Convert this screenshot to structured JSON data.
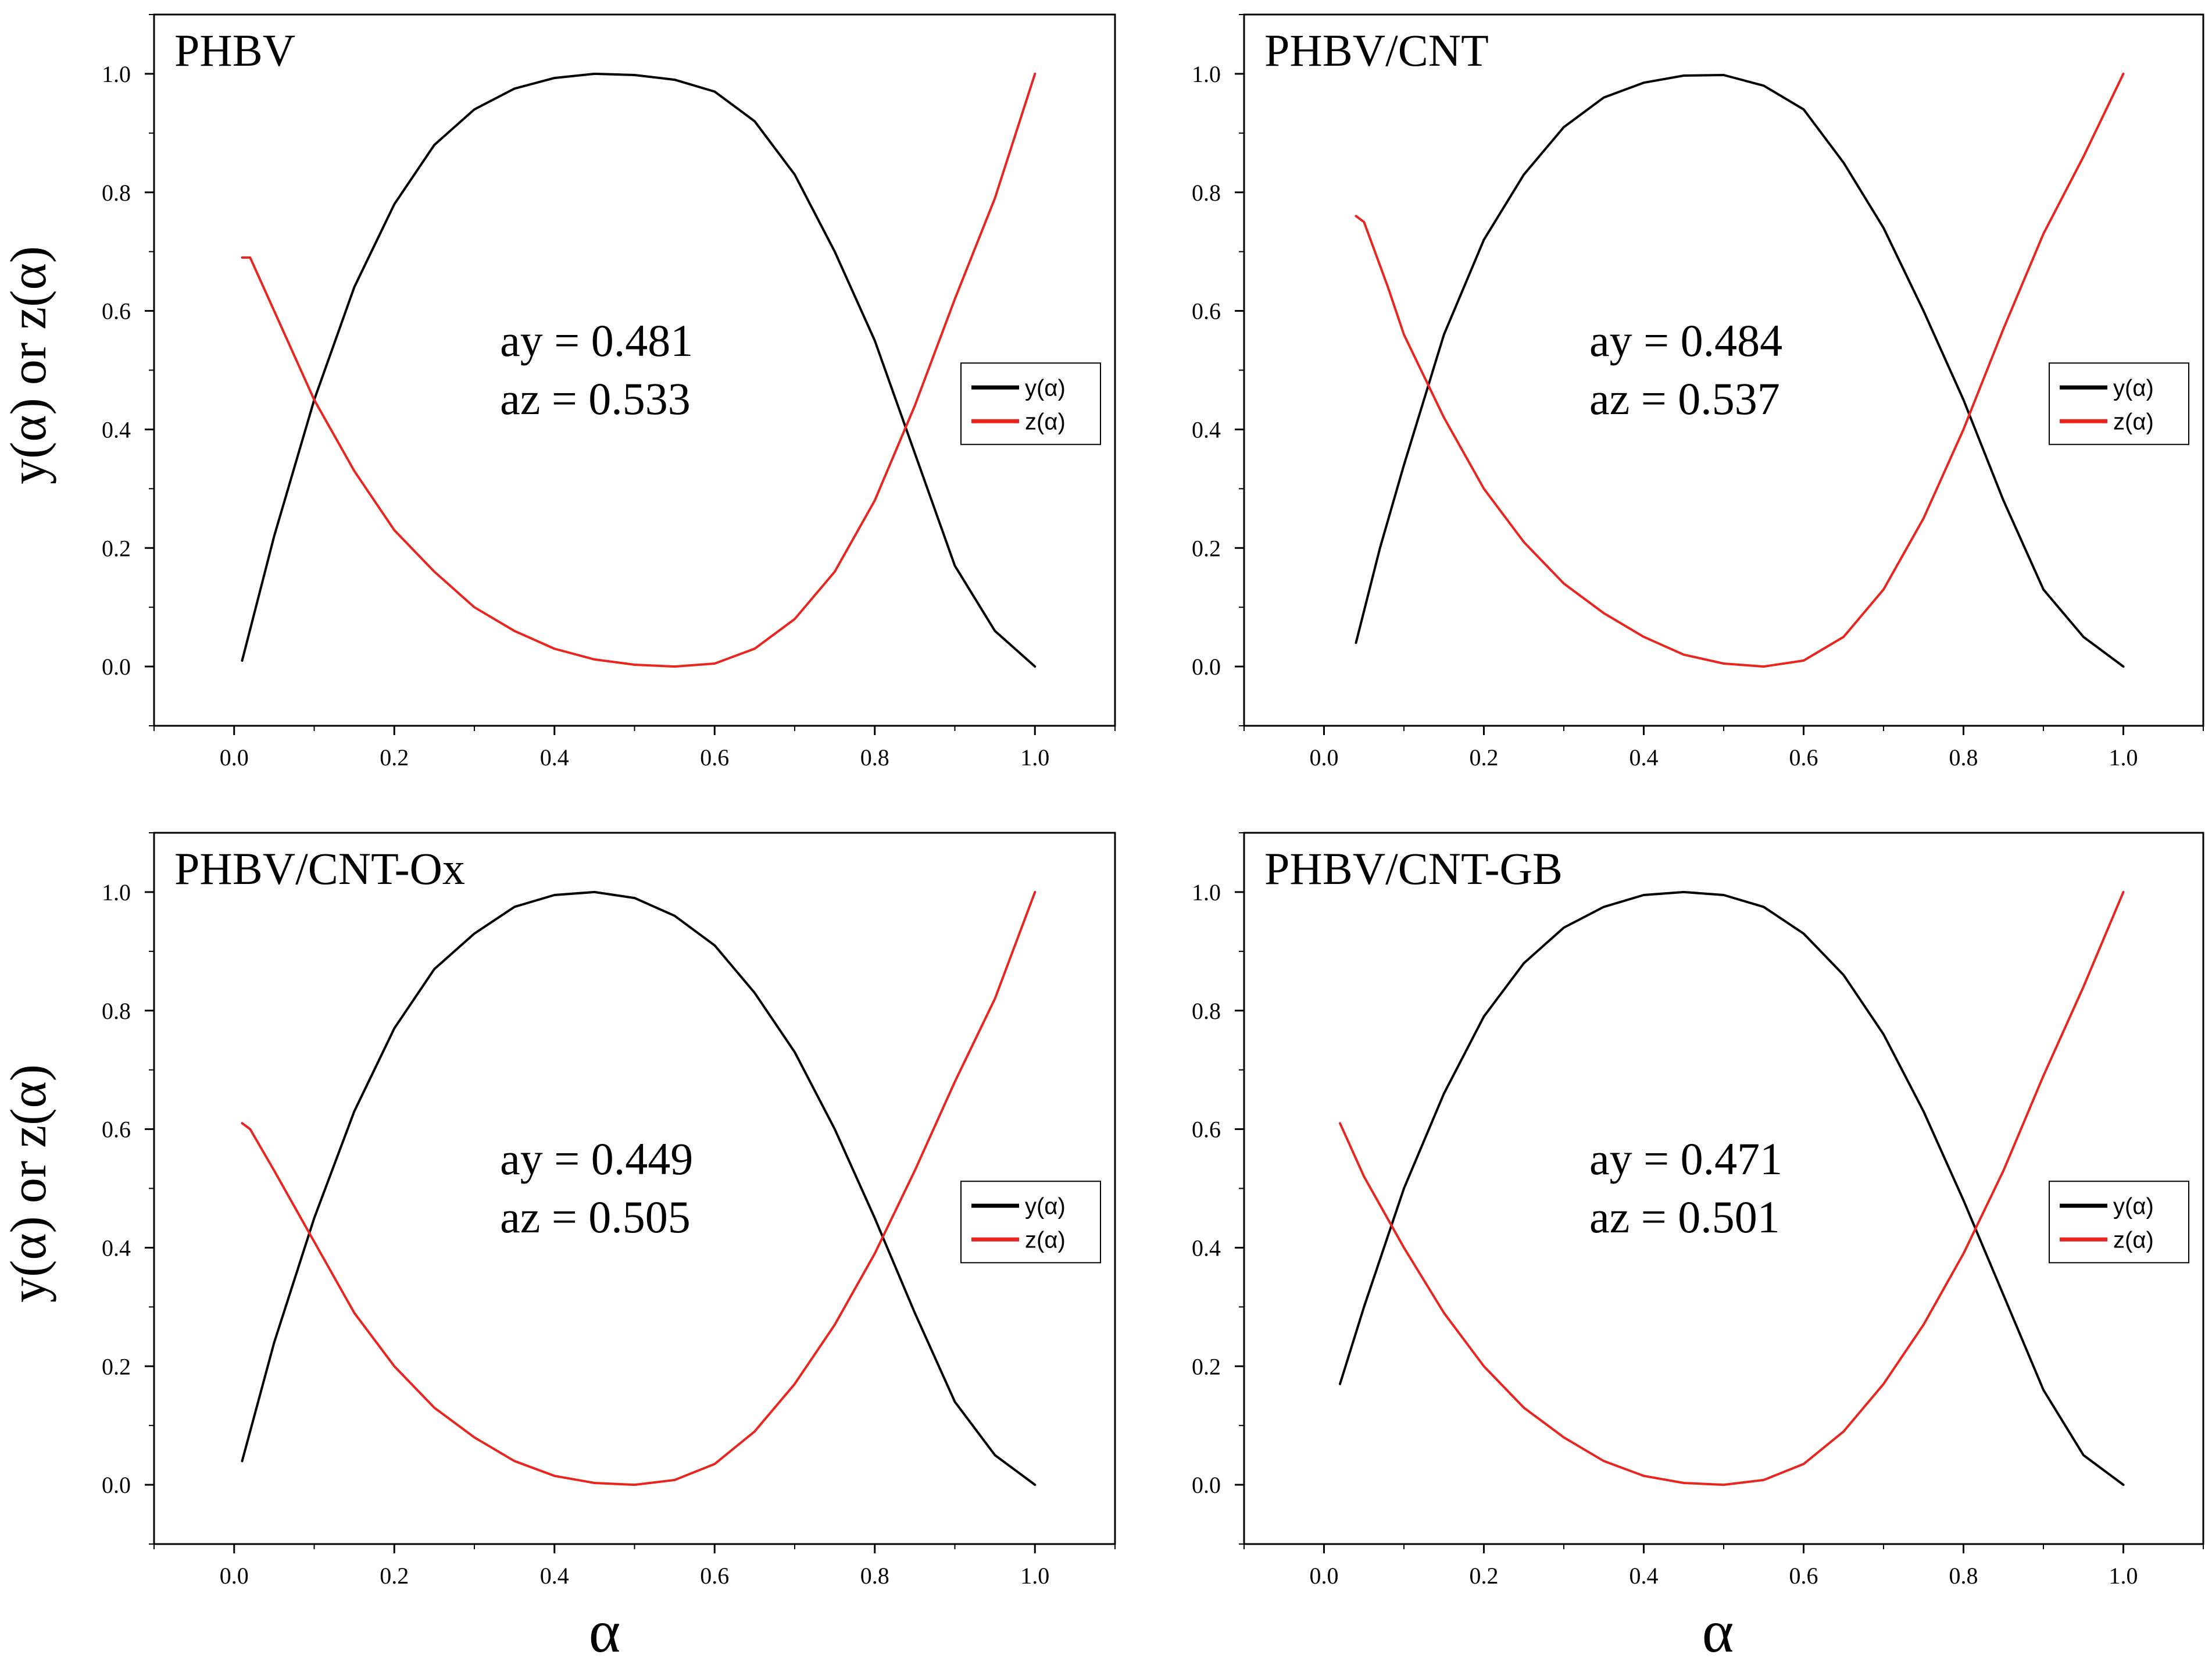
{
  "figure": {
    "ylabel_top": "y(α) or z(α)",
    "ylabel_bottom": "y(α) or z(α)",
    "xlabel_left": "α",
    "xlabel_right": "α"
  },
  "colors": {
    "y_series": "#000000",
    "z_series": "#e8251f",
    "axis": "#000000"
  },
  "chart_data": [
    {
      "type": "line",
      "title": "PHBV",
      "xlim": [
        -0.1,
        1.1
      ],
      "ylim": [
        -0.1,
        1.1
      ],
      "xticks": [
        "0.0",
        "0.2",
        "0.4",
        "0.6",
        "0.8",
        "1.0"
      ],
      "yticks": [
        "0.0",
        "0.2",
        "0.4",
        "0.6",
        "0.8",
        "1.0"
      ],
      "annotation": [
        "ay = 0.481",
        "az = 0.533"
      ],
      "legend_position": "center-right",
      "series": [
        {
          "name": "y(α)",
          "x": [
            0.01,
            0.05,
            0.1,
            0.15,
            0.2,
            0.25,
            0.3,
            0.35,
            0.4,
            0.45,
            0.5,
            0.55,
            0.6,
            0.65,
            0.7,
            0.75,
            0.8,
            0.85,
            0.9,
            0.95,
            1.0
          ],
          "y": [
            0.01,
            0.22,
            0.45,
            0.64,
            0.78,
            0.88,
            0.94,
            0.975,
            0.993,
            1.0,
            0.998,
            0.99,
            0.97,
            0.92,
            0.83,
            0.7,
            0.55,
            0.36,
            0.17,
            0.06,
            0.0
          ]
        },
        {
          "name": "z(α)",
          "x": [
            0.01,
            0.02,
            0.05,
            0.1,
            0.15,
            0.2,
            0.25,
            0.3,
            0.35,
            0.4,
            0.45,
            0.5,
            0.55,
            0.6,
            0.65,
            0.7,
            0.75,
            0.8,
            0.85,
            0.9,
            0.95,
            1.0
          ],
          "y": [
            0.69,
            0.69,
            0.6,
            0.45,
            0.33,
            0.23,
            0.16,
            0.1,
            0.06,
            0.03,
            0.012,
            0.003,
            0.0,
            0.005,
            0.03,
            0.08,
            0.16,
            0.28,
            0.44,
            0.62,
            0.79,
            1.0
          ]
        }
      ]
    },
    {
      "type": "line",
      "title": "PHBV/CNT",
      "xlim": [
        -0.1,
        1.1
      ],
      "ylim": [
        -0.1,
        1.1
      ],
      "xticks": [
        "0.0",
        "0.2",
        "0.4",
        "0.6",
        "0.8",
        "1.0"
      ],
      "yticks": [
        "0.0",
        "0.2",
        "0.4",
        "0.6",
        "0.8",
        "1.0"
      ],
      "annotation": [
        "ay = 0.484",
        "az = 0.537"
      ],
      "legend_position": "center-right",
      "series": [
        {
          "name": "y(α)",
          "x": [
            0.04,
            0.07,
            0.1,
            0.15,
            0.2,
            0.25,
            0.3,
            0.35,
            0.4,
            0.45,
            0.5,
            0.55,
            0.6,
            0.65,
            0.7,
            0.75,
            0.8,
            0.85,
            0.9,
            0.95,
            1.0
          ],
          "y": [
            0.04,
            0.2,
            0.34,
            0.56,
            0.72,
            0.83,
            0.91,
            0.96,
            0.985,
            0.997,
            0.998,
            0.98,
            0.94,
            0.85,
            0.74,
            0.6,
            0.45,
            0.28,
            0.13,
            0.05,
            0.0
          ]
        },
        {
          "name": "z(α)",
          "x": [
            0.04,
            0.05,
            0.08,
            0.1,
            0.15,
            0.2,
            0.25,
            0.3,
            0.35,
            0.4,
            0.45,
            0.5,
            0.55,
            0.6,
            0.65,
            0.7,
            0.75,
            0.8,
            0.85,
            0.9,
            0.95,
            1.0
          ],
          "y": [
            0.76,
            0.75,
            0.64,
            0.56,
            0.42,
            0.3,
            0.21,
            0.14,
            0.09,
            0.05,
            0.02,
            0.005,
            0.0,
            0.01,
            0.05,
            0.13,
            0.25,
            0.4,
            0.57,
            0.73,
            0.86,
            1.0
          ]
        }
      ]
    },
    {
      "type": "line",
      "title": "PHBV/CNT-Ox",
      "xlim": [
        -0.1,
        1.1
      ],
      "ylim": [
        -0.1,
        1.1
      ],
      "xticks": [
        "0.0",
        "0.2",
        "0.4",
        "0.6",
        "0.8",
        "1.0"
      ],
      "yticks": [
        "0.0",
        "0.2",
        "0.4",
        "0.6",
        "0.8",
        "1.0"
      ],
      "annotation": [
        "ay = 0.449",
        "az = 0.505"
      ],
      "legend_position": "center-right",
      "series": [
        {
          "name": "y(α)",
          "x": [
            0.01,
            0.05,
            0.1,
            0.15,
            0.2,
            0.25,
            0.3,
            0.35,
            0.4,
            0.45,
            0.5,
            0.55,
            0.6,
            0.65,
            0.7,
            0.75,
            0.8,
            0.85,
            0.9,
            0.95,
            1.0
          ],
          "y": [
            0.04,
            0.24,
            0.45,
            0.63,
            0.77,
            0.87,
            0.93,
            0.975,
            0.995,
            1.0,
            0.99,
            0.96,
            0.91,
            0.83,
            0.73,
            0.6,
            0.45,
            0.29,
            0.14,
            0.05,
            0.0
          ]
        },
        {
          "name": "z(α)",
          "x": [
            0.01,
            0.02,
            0.05,
            0.1,
            0.15,
            0.2,
            0.25,
            0.3,
            0.35,
            0.4,
            0.45,
            0.5,
            0.55,
            0.6,
            0.65,
            0.7,
            0.75,
            0.8,
            0.85,
            0.9,
            0.95,
            1.0
          ],
          "y": [
            0.61,
            0.6,
            0.53,
            0.41,
            0.29,
            0.2,
            0.13,
            0.08,
            0.04,
            0.015,
            0.003,
            0.0,
            0.008,
            0.035,
            0.09,
            0.17,
            0.27,
            0.39,
            0.53,
            0.68,
            0.82,
            1.0
          ]
        }
      ]
    },
    {
      "type": "line",
      "title": "PHBV/CNT-GB",
      "xlim": [
        -0.1,
        1.1
      ],
      "ylim": [
        -0.1,
        1.1
      ],
      "xticks": [
        "0.0",
        "0.2",
        "0.4",
        "0.6",
        "0.8",
        "1.0"
      ],
      "yticks": [
        "0.0",
        "0.2",
        "0.4",
        "0.6",
        "0.8",
        "1.0"
      ],
      "annotation": [
        "ay = 0.471",
        "az = 0.501"
      ],
      "legend_position": "center-right",
      "series": [
        {
          "name": "y(α)",
          "x": [
            0.02,
            0.05,
            0.1,
            0.15,
            0.2,
            0.25,
            0.3,
            0.35,
            0.4,
            0.45,
            0.5,
            0.55,
            0.6,
            0.65,
            0.7,
            0.75,
            0.8,
            0.85,
            0.9,
            0.95,
            1.0
          ],
          "y": [
            0.17,
            0.3,
            0.5,
            0.66,
            0.79,
            0.88,
            0.94,
            0.975,
            0.995,
            1.0,
            0.995,
            0.975,
            0.93,
            0.86,
            0.76,
            0.63,
            0.48,
            0.32,
            0.16,
            0.05,
            0.0
          ]
        },
        {
          "name": "z(α)",
          "x": [
            0.02,
            0.05,
            0.1,
            0.15,
            0.2,
            0.25,
            0.3,
            0.35,
            0.4,
            0.45,
            0.5,
            0.55,
            0.6,
            0.65,
            0.7,
            0.75,
            0.8,
            0.85,
            0.9,
            0.95,
            1.0
          ],
          "y": [
            0.61,
            0.52,
            0.4,
            0.29,
            0.2,
            0.13,
            0.08,
            0.04,
            0.015,
            0.003,
            0.0,
            0.008,
            0.035,
            0.09,
            0.17,
            0.27,
            0.39,
            0.53,
            0.69,
            0.84,
            1.0
          ]
        }
      ]
    }
  ]
}
